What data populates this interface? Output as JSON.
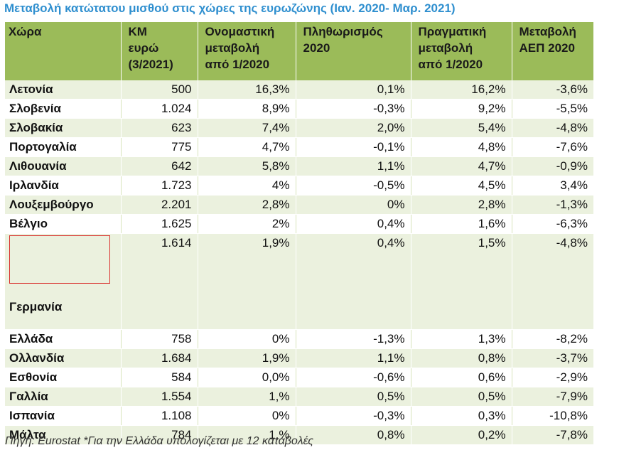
{
  "title": "Μεταβολή κατώτατου μισθού στις χώρες της ευρωζώνης (Ιαν. 2020- Μαρ. 2021)",
  "table": {
    "headers": [
      "Χώρα",
      "ΚΜ\nευρώ\n(3/2021)",
      "Ονομαστική\nμεταβολή\nαπό 1/2020",
      "Πληθωρισμός\n2020",
      "Πραγματική\nμεταβολή\nαπό 1/2020",
      "Μεταβολή\nΑΕΠ 2020"
    ],
    "rows": [
      [
        "Λετονία",
        "500",
        "16,3%",
        "0,1%",
        "16,2%",
        "-3,6%"
      ],
      [
        "Σλοβενία",
        "1.024",
        "8,9%",
        "-0,3%",
        "9,2%",
        "-5,5%"
      ],
      [
        "Σλοβακία",
        "623",
        "7,4%",
        "2,0%",
        "5,4%",
        "-4,8%"
      ],
      [
        "Πορτογαλία",
        "775",
        "4,7%",
        "-0,1%",
        "4,8%",
        "-7,6%"
      ],
      [
        "Λιθουανία",
        "642",
        "5,8%",
        "1,1%",
        "4,7%",
        "-0,9%"
      ],
      [
        "Ιρλανδία",
        "1.723",
        "4%",
        "-0,5%",
        "4,5%",
        "3,4%"
      ],
      [
        "Λουξεμβούργο",
        "2.201",
        "2,8%",
        "0%",
        "2,8%",
        "-1,3%"
      ],
      [
        "Βέλγιο",
        "1.625",
        "2%",
        "0,4%",
        "1,6%",
        "-6,3%"
      ],
      [
        "Γερμανία",
        "1.614",
        "1,9%",
        "0,4%",
        "1,5%",
        "-4,8%"
      ],
      [
        "Ελλάδα",
        "758",
        "0%",
        "-1,3%",
        "1,3%",
        "-8,2%"
      ],
      [
        "Ολλανδία",
        "1.684",
        "1,9%",
        "1,1%",
        "0,8%",
        "-3,7%"
      ],
      [
        "Εσθονία",
        "584",
        "0,0%",
        "-0,6%",
        "0,6%",
        "-2,9%"
      ],
      [
        "Γαλλία",
        "1.554",
        "1,%",
        "0,5%",
        "0,5%",
        "-7,9%"
      ],
      [
        "Ισπανία",
        "1.108",
        "0%",
        "-0,3%",
        "0,3%",
        "-10,8%"
      ],
      [
        "Μάλτα",
        "784",
        "1,%",
        "0,8%",
        "0,2%",
        "-7,8%"
      ]
    ]
  },
  "source": "Πηγή: Eurostat *Για την Ελλάδα υπολογίζεται με 12 καταβολές",
  "colors": {
    "title": "#2f8fcf",
    "header_bg": "#9bbb59",
    "row_odd_bg": "#ebf1de",
    "row_even_bg": "#ffffff",
    "highlight_box": "#d9302c"
  }
}
